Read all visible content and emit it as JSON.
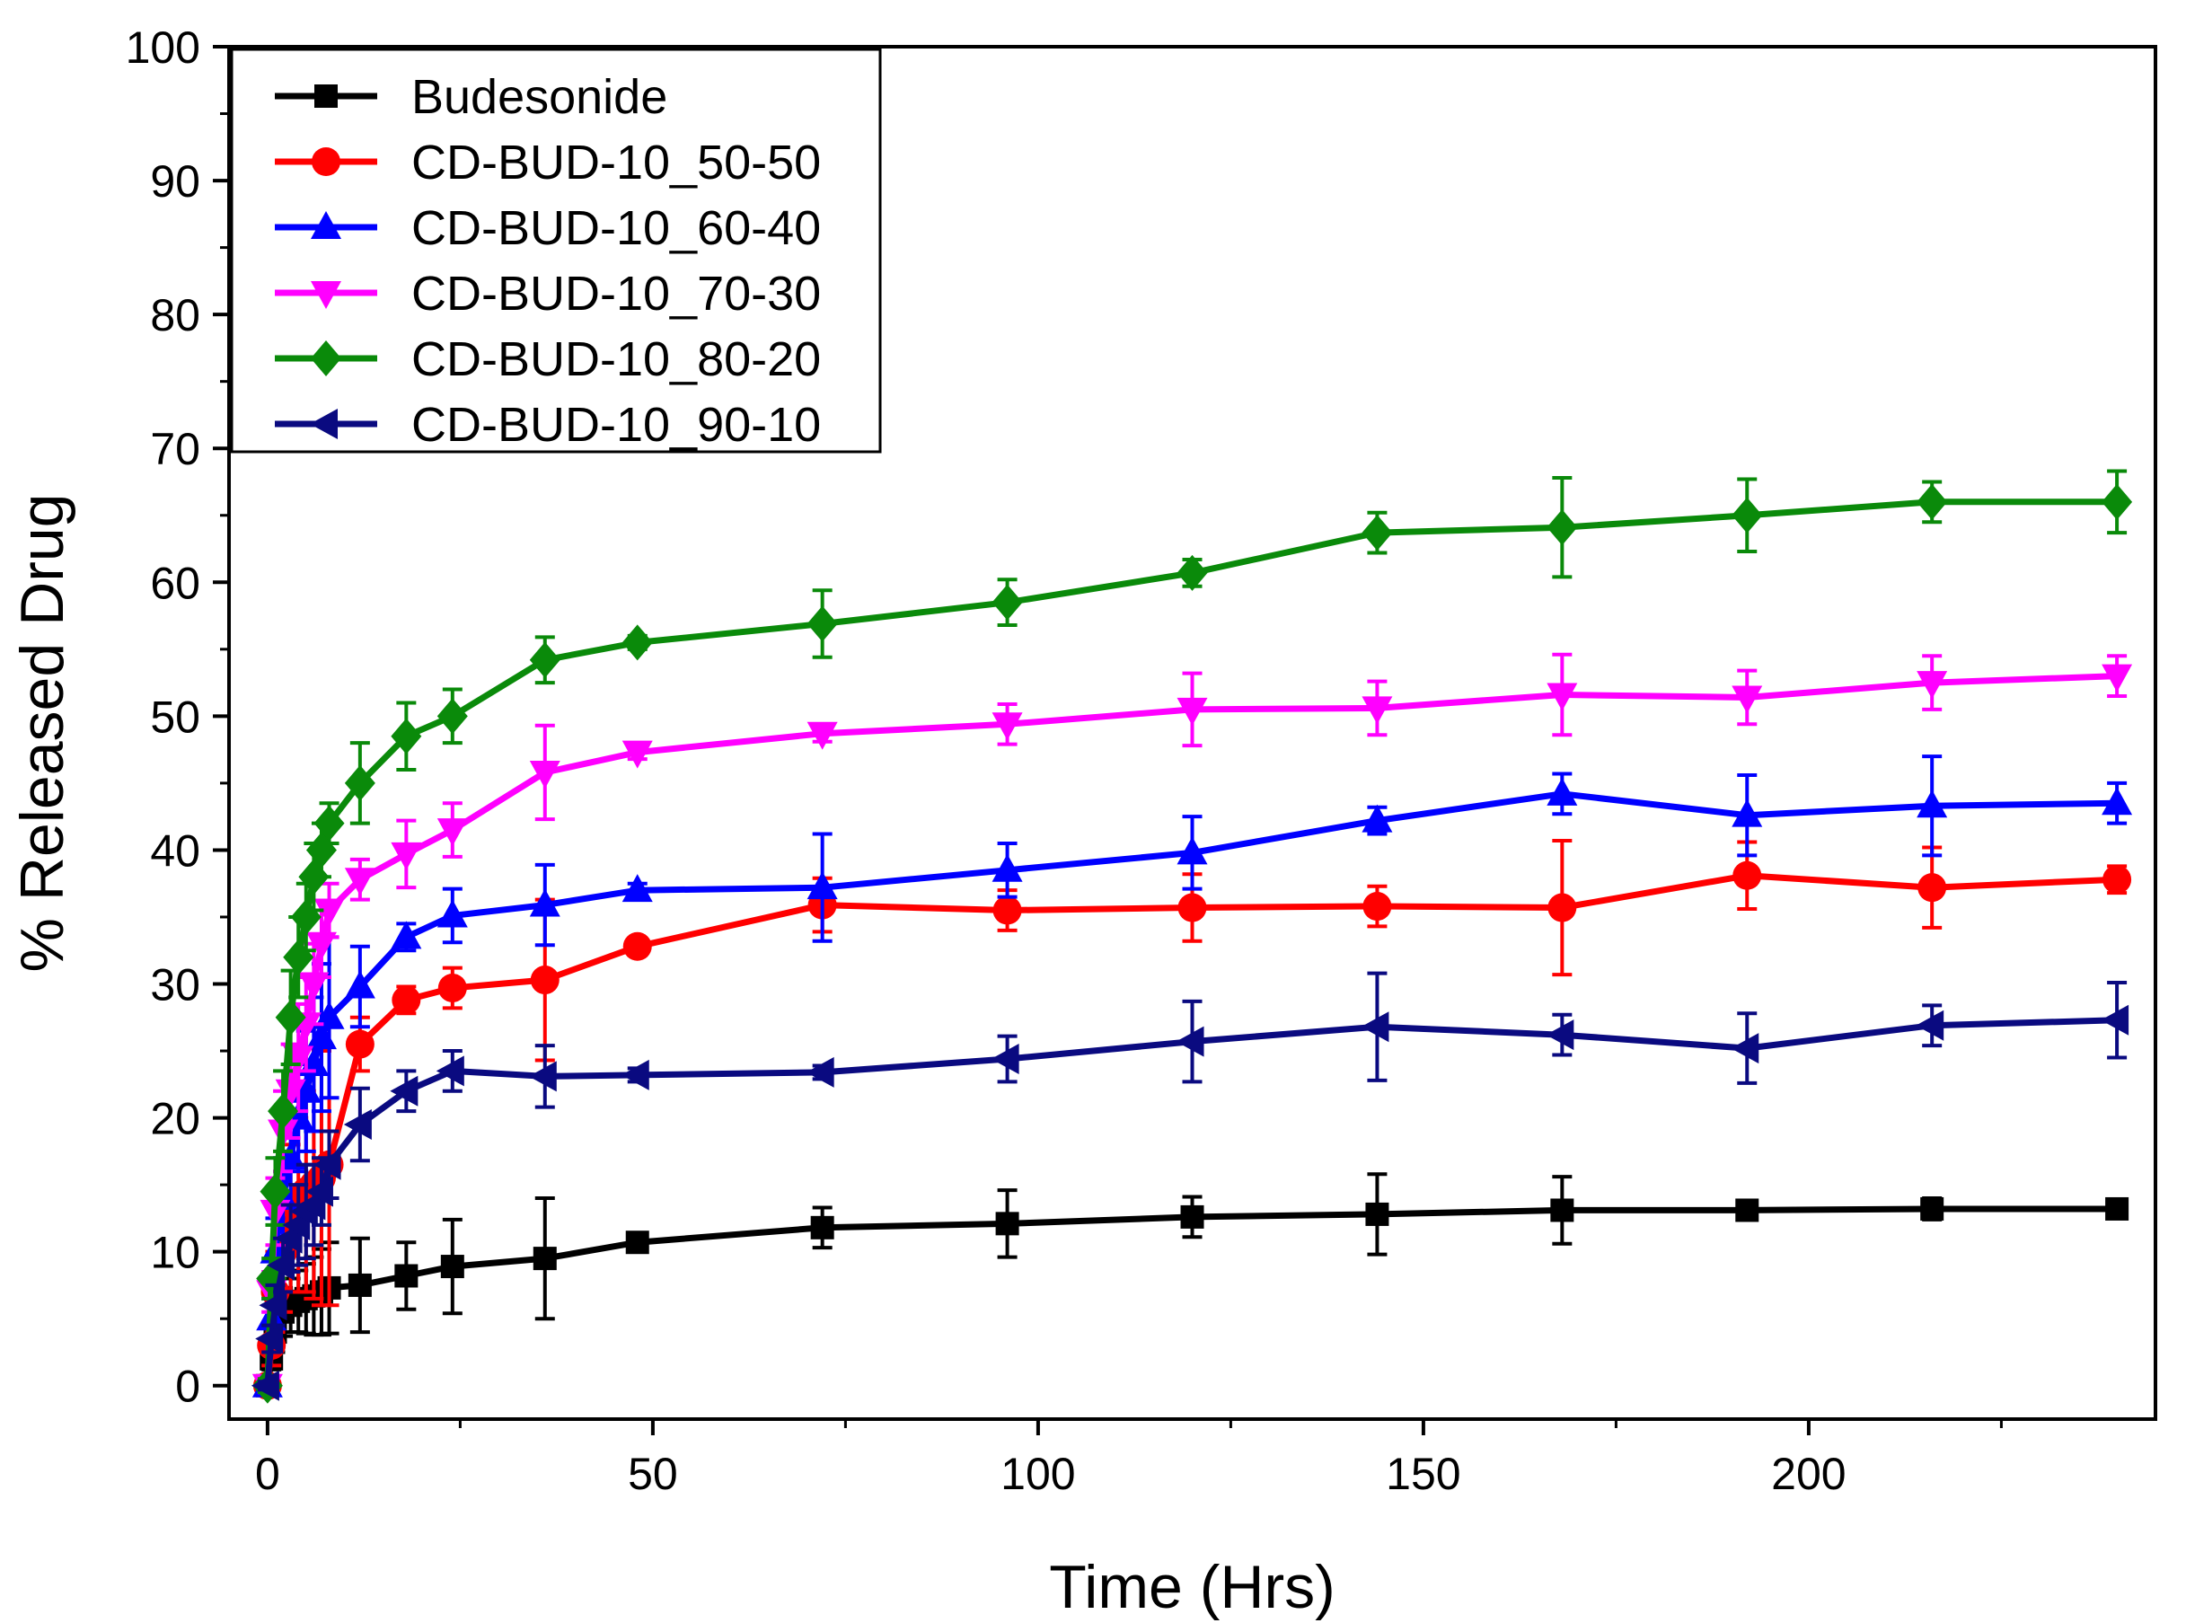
{
  "chart_data": {
    "type": "line",
    "title": "",
    "xlabel": "Time (Hrs)",
    "ylabel": "% Released Drug",
    "xlim": [
      -5,
      245
    ],
    "ylim": [
      -2.5,
      100
    ],
    "xticks": [
      0,
      50,
      100,
      150,
      200
    ],
    "yticks": [
      0,
      10,
      20,
      30,
      40,
      50,
      60,
      70,
      80,
      90,
      100
    ],
    "x_minor_step": 25,
    "y_minor_step": 5,
    "legend_position": "top-left",
    "x": [
      0,
      0.5,
      1,
      2,
      3,
      4,
      5,
      6,
      7,
      8,
      12,
      18,
      24,
      36,
      48,
      72,
      96,
      120,
      144,
      168,
      192,
      216,
      240
    ],
    "series": [
      {
        "name": "Budesonide",
        "color": "#000000",
        "marker": "square",
        "values": [
          0,
          2,
          4,
          5.5,
          6,
          6.3,
          6.5,
          6.7,
          7,
          7.3,
          7.5,
          8.2,
          8.9,
          9.5,
          10.7,
          11.8,
          12.1,
          12.6,
          12.8,
          13.1,
          13.1,
          13.2,
          13.2
        ],
        "errors": [
          0.3,
          0.8,
          1.5,
          1.8,
          2,
          2.3,
          2.6,
          2.9,
          3.2,
          3.4,
          3.5,
          2.5,
          3.5,
          4.5,
          0.5,
          1.5,
          2.5,
          1.5,
          3,
          2.5,
          0.5,
          0.8,
          0.4
        ]
      },
      {
        "name": "CD-BUD-10_50-50",
        "color": "#ff0000",
        "marker": "circle",
        "values": [
          0,
          3,
          7,
          10,
          12.5,
          13.5,
          14.5,
          15,
          15.5,
          16.5,
          25.5,
          28.8,
          29.7,
          30.3,
          32.8,
          35.9,
          35.5,
          35.7,
          35.8,
          35.7,
          38.1,
          37.2,
          37.8
        ],
        "errors": [
          0.5,
          1.5,
          3,
          4.5,
          5.5,
          6.5,
          7.5,
          8.5,
          9.5,
          10.5,
          2,
          1,
          1.5,
          6,
          0.5,
          2,
          1.5,
          2.5,
          1.5,
          5,
          2.5,
          3,
          1
        ]
      },
      {
        "name": "CD-BUD-10_60-40",
        "color": "#0000ff",
        "marker": "triangle-up",
        "values": [
          0,
          5,
          10,
          14,
          17,
          20,
          22,
          24,
          26,
          27.5,
          29.8,
          33.5,
          35.1,
          35.9,
          37,
          37.2,
          38.5,
          39.8,
          42.2,
          44.2,
          42.6,
          43.3,
          43.5
        ],
        "errors": [
          0.5,
          1.5,
          2.5,
          3,
          3.5,
          4,
          4.5,
          5,
          5.5,
          6,
          3,
          1,
          2,
          3,
          0.5,
          4,
          2,
          2.7,
          1,
          1.5,
          3,
          3.7,
          1.5
        ]
      },
      {
        "name": "CD-BUD-10_70-30",
        "color": "#ff00ff",
        "marker": "triangle-down",
        "values": [
          0,
          7,
          13,
          19,
          22,
          24.5,
          27,
          30,
          33,
          35.5,
          37.8,
          39.7,
          41.5,
          45.8,
          47.3,
          48.7,
          49.4,
          50.5,
          50.6,
          51.6,
          51.4,
          52.5,
          53
        ],
        "errors": [
          0.5,
          1.5,
          2.5,
          3,
          3.5,
          4,
          3.5,
          3,
          2.5,
          2,
          1.5,
          2.5,
          2,
          3.5,
          0.5,
          0.6,
          1.5,
          2.7,
          2,
          3,
          2,
          2,
          1.5
        ]
      },
      {
        "name": "CD-BUD-10_80-20",
        "color": "#0a8a0a",
        "marker": "diamond",
        "values": [
          0,
          8,
          14.5,
          20.5,
          27.5,
          32,
          35,
          38,
          40,
          42,
          45,
          48.5,
          50,
          54.2,
          55.5,
          56.9,
          58.5,
          60.7,
          63.7,
          64.1,
          65,
          66,
          66
        ],
        "errors": [
          0.5,
          1.5,
          2.5,
          3,
          3.5,
          3,
          2.5,
          2.5,
          2,
          1.5,
          3,
          2.5,
          2,
          1.7,
          0.5,
          2.5,
          1.7,
          1,
          1.5,
          3.7,
          2.7,
          1.5,
          2.3
        ]
      },
      {
        "name": "CD-BUD-10_90-10",
        "color": "#0a0a80",
        "marker": "triangle-left",
        "values": [
          0,
          3.5,
          6,
          9,
          11,
          12,
          13,
          13.5,
          14.5,
          16.5,
          19.5,
          22,
          23.5,
          23.1,
          23.2,
          23.4,
          24.4,
          25.7,
          26.8,
          26.2,
          25.2,
          26.9,
          27.3
        ],
        "errors": [
          0.3,
          1,
          1.5,
          2,
          2.5,
          3,
          3.5,
          3,
          2.5,
          2.5,
          2.7,
          1.5,
          1.5,
          2.3,
          0.5,
          0.5,
          1.7,
          3,
          4,
          1.5,
          2.6,
          1.5,
          2.8
        ]
      }
    ]
  }
}
